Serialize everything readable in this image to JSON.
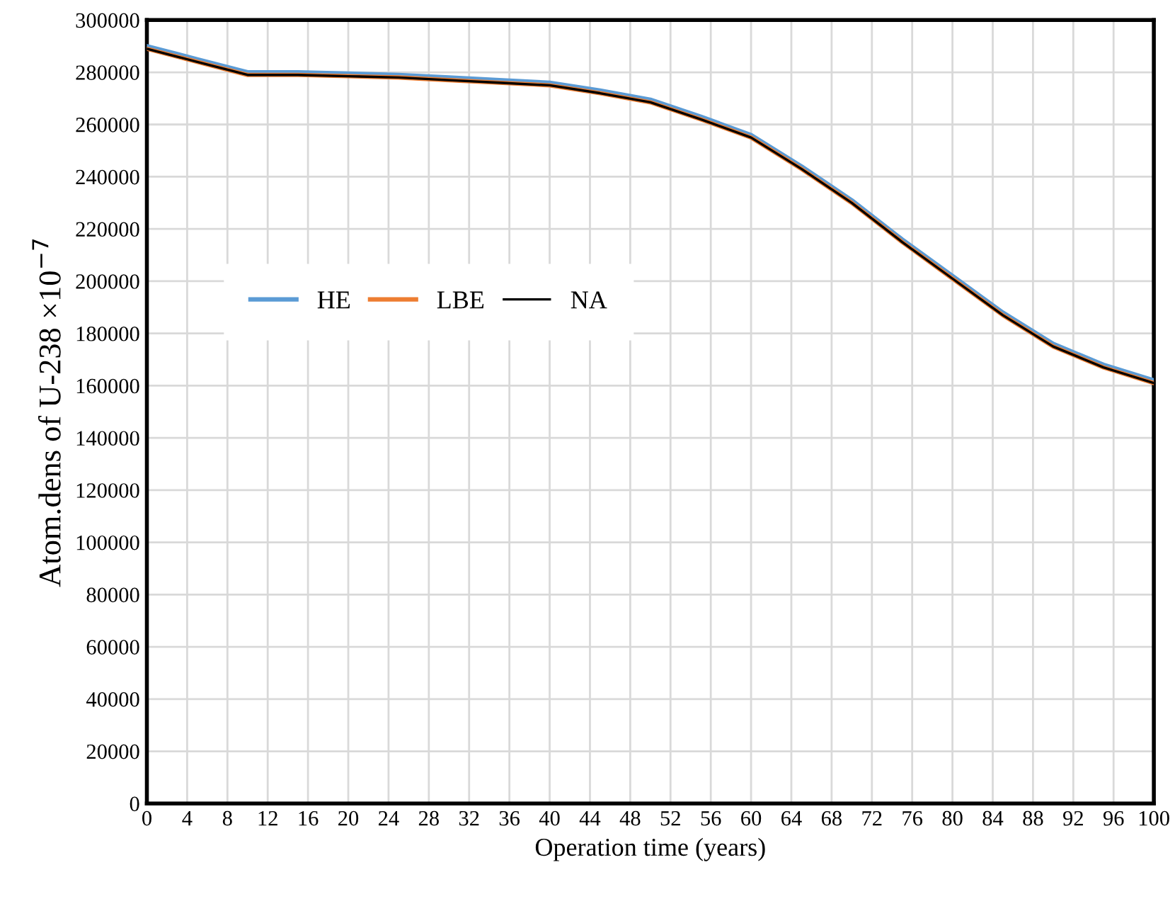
{
  "chart_data": {
    "type": "line",
    "xlabel": "Operation time (years)",
    "ylabel": "Atom.dens of U-238 ×10$^{−7}$",
    "x": [
      0,
      5,
      10,
      15,
      20,
      25,
      30,
      35,
      40,
      45,
      50,
      55,
      60,
      65,
      70,
      75,
      80,
      85,
      90,
      95,
      100
    ],
    "series": [
      {
        "name": "HE",
        "color": "#5b9bd5",
        "values": [
          290000,
          285000,
          280000,
          280000,
          279500,
          279000,
          278000,
          277000,
          276000,
          273000,
          269500,
          263000,
          256000,
          244000,
          231000,
          216000,
          202000,
          188000,
          176000,
          168000,
          162000
        ]
      },
      {
        "name": "LBE",
        "color": "#ed7d31",
        "values": [
          289000,
          284000,
          279000,
          279000,
          278500,
          278000,
          277000,
          276000,
          275000,
          272000,
          268500,
          262000,
          255000,
          243000,
          230000,
          215000,
          201000,
          187000,
          175000,
          167000,
          161000
        ]
      },
      {
        "name": "NA",
        "color": "#000000",
        "values": [
          289000,
          284000,
          279000,
          279000,
          278500,
          278000,
          277000,
          276000,
          275000,
          272000,
          268500,
          262000,
          255000,
          243000,
          230000,
          215000,
          201000,
          187000,
          175000,
          167000,
          161000
        ]
      }
    ],
    "xlim": [
      0,
      100
    ],
    "xticks": [
      0,
      4,
      8,
      12,
      16,
      20,
      24,
      28,
      32,
      36,
      40,
      44,
      48,
      52,
      56,
      60,
      64,
      68,
      72,
      76,
      80,
      84,
      88,
      92,
      96,
      100
    ],
    "ylim": [
      0,
      300000
    ],
    "yticks": [
      0,
      20000,
      40000,
      60000,
      80000,
      100000,
      120000,
      140000,
      160000,
      180000,
      200000,
      220000,
      240000,
      260000,
      280000,
      300000
    ],
    "grid": true,
    "legend": "left",
    "marker": "none",
    "line_style": "solid"
  }
}
